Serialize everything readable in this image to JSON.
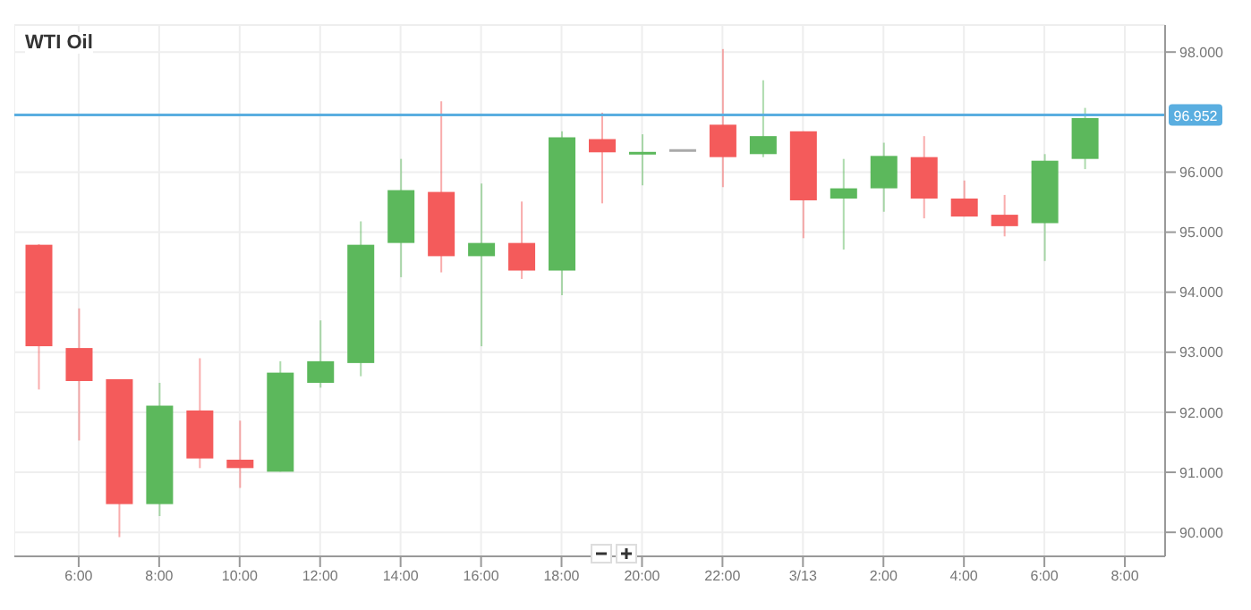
{
  "chart_data": {
    "type": "candlestick",
    "title": "WTI Oil",
    "x": [
      "--03-12T05:00",
      "--03-12T06:00",
      "--03-12T07:00",
      "--03-12T08:00",
      "--03-12T09:00",
      "--03-12T10:00",
      "--03-12T11:00",
      "--03-12T12:00",
      "--03-12T13:00",
      "--03-12T14:00",
      "--03-12T15:00",
      "--03-12T16:00",
      "--03-12T17:00",
      "--03-12T18:00",
      "--03-12T19:00",
      "--03-12T20:00",
      "--03-12T21:00",
      "--03-12T22:00",
      "--03-12T23:00",
      "--03-13T00:00",
      "--03-13T01:00",
      "--03-13T02:00",
      "--03-13T03:00",
      "--03-13T04:00",
      "--03-13T05:00",
      "--03-13T06:00",
      "--03-13T07:00"
    ],
    "ohlc": [
      [
        94.79,
        94.8,
        92.38,
        93.1
      ],
      [
        93.07,
        93.73,
        91.53,
        92.52
      ],
      [
        92.55,
        92.55,
        89.92,
        90.47
      ],
      [
        90.47,
        92.49,
        90.27,
        92.11
      ],
      [
        92.03,
        92.9,
        91.07,
        91.23
      ],
      [
        91.21,
        91.86,
        90.74,
        91.07
      ],
      [
        91.01,
        92.85,
        91.01,
        92.66
      ],
      [
        92.49,
        93.53,
        92.41,
        92.85
      ],
      [
        92.82,
        95.18,
        92.6,
        94.79
      ],
      [
        94.82,
        96.22,
        94.25,
        95.7
      ],
      [
        95.67,
        97.18,
        94.33,
        94.6
      ],
      [
        94.6,
        95.81,
        93.1,
        94.82
      ],
      [
        94.82,
        95.51,
        94.22,
        94.36
      ],
      [
        94.36,
        96.68,
        93.95,
        96.58
      ],
      [
        96.55,
        96.99,
        95.48,
        96.33
      ],
      [
        96.3,
        96.63,
        95.78,
        96.33
      ],
      [
        96.35,
        96.37,
        96.35,
        96.37
      ],
      [
        96.79,
        98.05,
        95.75,
        96.25
      ],
      [
        96.3,
        97.53,
        96.25,
        96.6
      ],
      [
        96.68,
        96.68,
        94.9,
        95.53
      ],
      [
        95.56,
        96.22,
        94.71,
        95.73
      ],
      [
        95.73,
        96.49,
        95.34,
        96.27
      ],
      [
        96.25,
        96.6,
        95.23,
        95.56
      ],
      [
        95.56,
        95.86,
        95.26,
        95.26
      ],
      [
        95.29,
        95.62,
        94.93,
        95.1
      ],
      [
        95.15,
        96.3,
        94.52,
        96.19
      ],
      [
        96.22,
        97.07,
        96.05,
        96.9
      ]
    ],
    "colors": [
      "#f45b5b",
      "#f45b5b",
      "#f45b5b",
      "#5cb85c",
      "#f45b5b",
      "#f45b5b",
      "#5cb85c",
      "#5cb85c",
      "#5cb85c",
      "#5cb85c",
      "#f45b5b",
      "#5cb85c",
      "#f45b5b",
      "#5cb85c",
      "#f45b5b",
      "#5cb85c",
      "#aaaaaa",
      "#f45b5b",
      "#5cb85c",
      "#f45b5b",
      "#5cb85c",
      "#5cb85c",
      "#f45b5b",
      "#f45b5b",
      "#f45b5b",
      "#5cb85c",
      "#5cb85c"
    ],
    "xlim": [
      "--03-12T04:24",
      "--03-13T09:00"
    ],
    "xticks": [
      {
        "value": "--03-12T06:00",
        "label": "6:00"
      },
      {
        "value": "--03-12T08:00",
        "label": "8:00"
      },
      {
        "value": "--03-12T10:00",
        "label": "10:00"
      },
      {
        "value": "--03-12T12:00",
        "label": "12:00"
      },
      {
        "value": "--03-12T14:00",
        "label": "14:00"
      },
      {
        "value": "--03-12T16:00",
        "label": "16:00"
      },
      {
        "value": "--03-12T18:00",
        "label": "18:00"
      },
      {
        "value": "--03-12T20:00",
        "label": "20:00"
      },
      {
        "value": "--03-12T22:00",
        "label": "22:00"
      },
      {
        "value": "--03-13T00:00",
        "label": "3/13"
      },
      {
        "value": "--03-13T02:00",
        "label": "2:00"
      },
      {
        "value": "--03-13T04:00",
        "label": "4:00"
      },
      {
        "value": "--03-13T06:00",
        "label": "6:00"
      },
      {
        "value": "--03-13T08:00",
        "label": "8:00"
      }
    ],
    "ylim": [
      89.6,
      98.45
    ],
    "yticks": [
      {
        "value": 90,
        "label": "90.000"
      },
      {
        "value": 91,
        "label": "91.000"
      },
      {
        "value": 92,
        "label": "92.000"
      },
      {
        "value": 93,
        "label": "93.000"
      },
      {
        "value": 94,
        "label": "94.000"
      },
      {
        "value": 95,
        "label": "95.000"
      },
      {
        "value": 96,
        "label": "96.000"
      },
      {
        "value": 98,
        "label": "98.000"
      }
    ],
    "ref_lines": [
      {
        "axis": "y",
        "value": 96.952,
        "label": "96.952",
        "color": "#5aaee0"
      }
    ],
    "grid": true
  }
}
